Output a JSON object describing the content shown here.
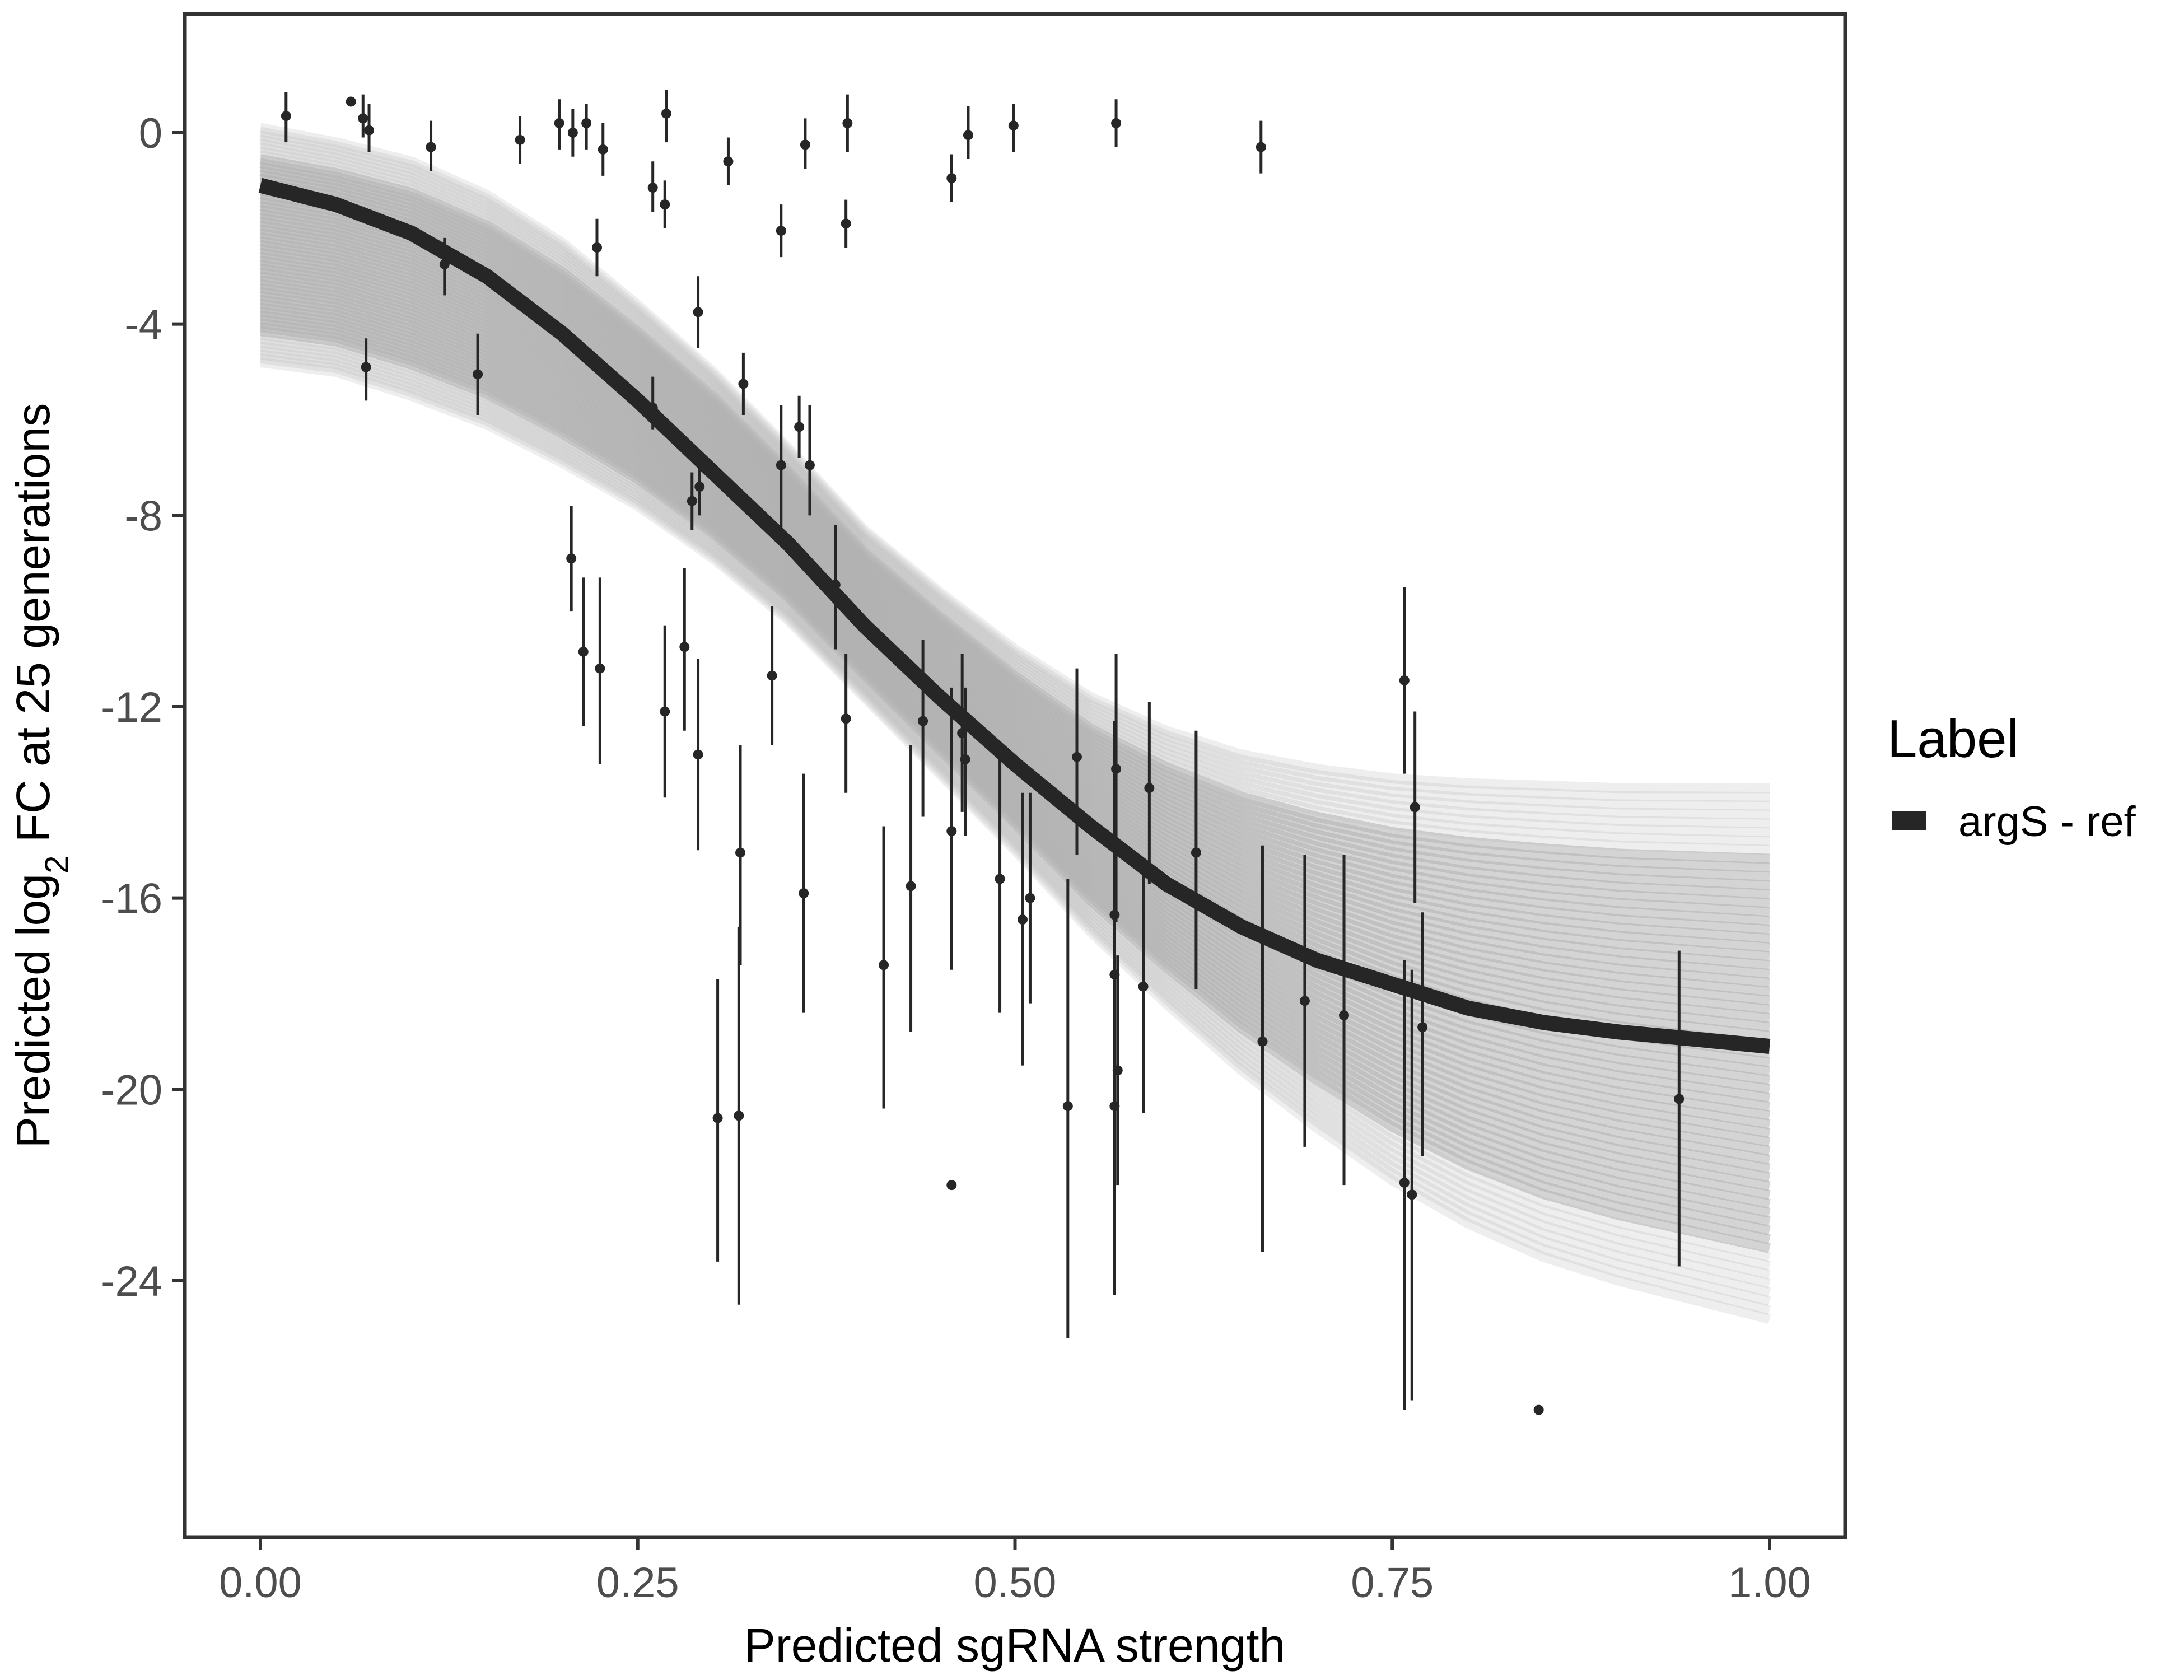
{
  "chart_data": {
    "type": "scatter",
    "xlabel": "Predicted sgRNA strength",
    "ylabel": {
      "prefix": "Predicted  log",
      "subscript": "2",
      "suffix": " FC at 25 generations"
    },
    "xlim": [
      -0.1,
      1.1
    ],
    "ylim": [
      -29.5,
      2.5
    ],
    "x_ticks": [
      0.0,
      0.25,
      0.5,
      0.75,
      1.0
    ],
    "x_tick_labels": [
      "0.00",
      "0.25",
      "0.50",
      "0.75",
      "1.00"
    ],
    "y_ticks": [
      0,
      -4,
      -8,
      -12,
      -16,
      -20,
      -24
    ],
    "y_tick_labels": [
      "0",
      "-4",
      "-8",
      "-12",
      "-16",
      "-20",
      "-24"
    ],
    "grid": false,
    "legend": {
      "title": "Label",
      "placement": "right",
      "entries": [
        {
          "label": "argS - ref",
          "color": "#262626"
        }
      ]
    },
    "fit_curve": {
      "name": "argS - ref",
      "color": "#262626",
      "x": [
        0.0,
        0.05,
        0.1,
        0.15,
        0.2,
        0.25,
        0.3,
        0.35,
        0.4,
        0.45,
        0.5,
        0.55,
        0.6,
        0.65,
        0.7,
        0.75,
        0.8,
        0.85,
        0.9,
        0.95,
        1.0
      ],
      "y": [
        -1.1,
        -1.5,
        -2.1,
        -3.0,
        -4.2,
        -5.6,
        -7.1,
        -8.6,
        -10.3,
        -11.8,
        -13.2,
        -14.5,
        -15.7,
        -16.6,
        -17.3,
        -17.8,
        -18.3,
        -18.6,
        -18.8,
        -18.95,
        -19.1
      ]
    },
    "ribbon": {
      "color": "#b0b0b0",
      "x": [
        0.0,
        0.05,
        0.1,
        0.15,
        0.2,
        0.25,
        0.3,
        0.35,
        0.4,
        0.45,
        0.5,
        0.55,
        0.6,
        0.65,
        0.7,
        0.75,
        0.8,
        0.85,
        0.9,
        0.95,
        1.0
      ],
      "upper": [
        0.1,
        -0.2,
        -0.6,
        -1.3,
        -2.3,
        -3.6,
        -5.0,
        -6.6,
        -8.3,
        -9.6,
        -10.8,
        -11.8,
        -12.5,
        -13.0,
        -13.3,
        -13.5,
        -13.6,
        -13.65,
        -13.7,
        -13.7,
        -13.7
      ],
      "lower": [
        -4.8,
        -5.0,
        -5.5,
        -6.1,
        -6.9,
        -7.8,
        -8.9,
        -10.2,
        -11.8,
        -13.4,
        -15.0,
        -16.7,
        -18.2,
        -19.6,
        -20.8,
        -21.9,
        -22.8,
        -23.5,
        -24.0,
        -24.4,
        -24.8
      ]
    },
    "points": [
      {
        "x": 0.017,
        "y": 0.35,
        "lo": -0.2,
        "hi": 0.85
      },
      {
        "x": 0.06,
        "y": 0.65,
        "lo": 0.65,
        "hi": 0.65
      },
      {
        "x": 0.068,
        "y": 0.3,
        "lo": -0.1,
        "hi": 0.8
      },
      {
        "x": 0.072,
        "y": 0.05,
        "lo": -0.4,
        "hi": 0.6
      },
      {
        "x": 0.07,
        "y": -4.9,
        "lo": -5.6,
        "hi": -4.3
      },
      {
        "x": 0.113,
        "y": -0.3,
        "lo": -0.8,
        "hi": 0.25
      },
      {
        "x": 0.122,
        "y": -2.75,
        "lo": -3.4,
        "hi": -2.2
      },
      {
        "x": 0.144,
        "y": -5.05,
        "lo": -5.9,
        "hi": -4.2
      },
      {
        "x": 0.172,
        "y": -0.15,
        "lo": -0.65,
        "hi": 0.35
      },
      {
        "x": 0.198,
        "y": 0.2,
        "lo": -0.35,
        "hi": 0.7
      },
      {
        "x": 0.206,
        "y": -8.9,
        "lo": -10.0,
        "hi": -7.8
      },
      {
        "x": 0.207,
        "y": 0.0,
        "lo": -0.5,
        "hi": 0.5
      },
      {
        "x": 0.214,
        "y": -10.85,
        "lo": -12.4,
        "hi": -9.3
      },
      {
        "x": 0.216,
        "y": 0.2,
        "lo": -0.35,
        "hi": 0.6
      },
      {
        "x": 0.223,
        "y": -2.4,
        "lo": -3.0,
        "hi": -1.8
      },
      {
        "x": 0.225,
        "y": -11.2,
        "lo": -13.2,
        "hi": -9.3
      },
      {
        "x": 0.227,
        "y": -0.35,
        "lo": -0.9,
        "hi": 0.2
      },
      {
        "x": 0.26,
        "y": -1.15,
        "lo": -1.65,
        "hi": -0.6
      },
      {
        "x": 0.26,
        "y": -5.75,
        "lo": -6.2,
        "hi": -5.1
      },
      {
        "x": 0.268,
        "y": -1.5,
        "lo": -2.0,
        "hi": -1.0
      },
      {
        "x": 0.268,
        "y": -12.1,
        "lo": -13.9,
        "hi": -10.3
      },
      {
        "x": 0.269,
        "y": 0.4,
        "lo": -0.2,
        "hi": 0.9
      },
      {
        "x": 0.281,
        "y": -10.75,
        "lo": -12.5,
        "hi": -9.1
      },
      {
        "x": 0.286,
        "y": -7.7,
        "lo": -8.3,
        "hi": -7.1
      },
      {
        "x": 0.29,
        "y": -13.0,
        "lo": -15.0,
        "hi": -11.0
      },
      {
        "x": 0.29,
        "y": -3.75,
        "lo": -4.5,
        "hi": -3.0
      },
      {
        "x": 0.291,
        "y": -7.4,
        "lo": -8.0,
        "hi": -6.8
      },
      {
        "x": 0.303,
        "y": -20.6,
        "lo": -23.6,
        "hi": -17.7
      },
      {
        "x": 0.31,
        "y": -0.6,
        "lo": -1.1,
        "hi": -0.1
      },
      {
        "x": 0.317,
        "y": -20.55,
        "lo": -24.5,
        "hi": -16.6
      },
      {
        "x": 0.318,
        "y": -15.05,
        "lo": -17.4,
        "hi": -12.8
      },
      {
        "x": 0.32,
        "y": -5.25,
        "lo": -5.9,
        "hi": -4.6
      },
      {
        "x": 0.339,
        "y": -11.35,
        "lo": -12.8,
        "hi": -9.9
      },
      {
        "x": 0.345,
        "y": -2.05,
        "lo": -2.6,
        "hi": -1.5
      },
      {
        "x": 0.345,
        "y": -6.95,
        "lo": -8.3,
        "hi": -5.7
      },
      {
        "x": 0.357,
        "y": -6.15,
        "lo": -6.8,
        "hi": -5.5
      },
      {
        "x": 0.36,
        "y": -15.9,
        "lo": -18.4,
        "hi": -13.4
      },
      {
        "x": 0.361,
        "y": -0.25,
        "lo": -0.75,
        "hi": 0.3
      },
      {
        "x": 0.364,
        "y": -6.95,
        "lo": -8.0,
        "hi": -5.7
      },
      {
        "x": 0.381,
        "y": -9.45,
        "lo": -10.8,
        "hi": -8.2
      },
      {
        "x": 0.388,
        "y": -1.9,
        "lo": -2.4,
        "hi": -1.4
      },
      {
        "x": 0.388,
        "y": -12.25,
        "lo": -13.8,
        "hi": -10.9
      },
      {
        "x": 0.389,
        "y": 0.2,
        "lo": -0.4,
        "hi": 0.8
      },
      {
        "x": 0.413,
        "y": -17.4,
        "lo": -20.4,
        "hi": -14.5
      },
      {
        "x": 0.431,
        "y": -15.75,
        "lo": -18.8,
        "hi": -12.8
      },
      {
        "x": 0.439,
        "y": -12.3,
        "lo": -14.3,
        "hi": -10.6
      },
      {
        "x": 0.458,
        "y": -0.95,
        "lo": -1.45,
        "hi": -0.45
      },
      {
        "x": 0.458,
        "y": -14.6,
        "lo": -17.5,
        "hi": -11.6
      },
      {
        "x": 0.458,
        "y": -22.0,
        "lo": -22.0,
        "hi": -22.0
      },
      {
        "x": 0.465,
        "y": -12.55,
        "lo": -14.2,
        "hi": -10.9
      },
      {
        "x": 0.467,
        "y": -13.1,
        "lo": -14.7,
        "hi": -11.6
      },
      {
        "x": 0.469,
        "y": -0.05,
        "lo": -0.55,
        "hi": 0.55
      },
      {
        "x": 0.49,
        "y": -15.6,
        "lo": -18.4,
        "hi": -12.8
      },
      {
        "x": 0.499,
        "y": 0.15,
        "lo": -0.4,
        "hi": 0.6
      },
      {
        "x": 0.505,
        "y": -16.45,
        "lo": -19.5,
        "hi": -13.8
      },
      {
        "x": 0.51,
        "y": -16.0,
        "lo": -18.2,
        "hi": -13.8
      },
      {
        "x": 0.535,
        "y": -20.35,
        "lo": -25.2,
        "hi": -15.6
      },
      {
        "x": 0.541,
        "y": -13.05,
        "lo": -15.1,
        "hi": -11.2
      },
      {
        "x": 0.566,
        "y": -16.35,
        "lo": -21.6,
        "hi": -12.3
      },
      {
        "x": 0.566,
        "y": -17.6,
        "lo": -22.4,
        "hi": -13.3
      },
      {
        "x": 0.566,
        "y": -20.35,
        "lo": -24.3,
        "hi": -16.2
      },
      {
        "x": 0.567,
        "y": -13.3,
        "lo": -16.5,
        "hi": -10.9
      },
      {
        "x": 0.568,
        "y": -19.6,
        "lo": -22.0,
        "hi": -17.2
      },
      {
        "x": 0.567,
        "y": 0.2,
        "lo": -0.3,
        "hi": 0.7
      },
      {
        "x": 0.585,
        "y": -17.85,
        "lo": -20.5,
        "hi": -15.4
      },
      {
        "x": 0.589,
        "y": -13.7,
        "lo": -15.7,
        "hi": -11.9
      },
      {
        "x": 0.62,
        "y": -15.05,
        "lo": -17.9,
        "hi": -12.5
      },
      {
        "x": 0.663,
        "y": -0.3,
        "lo": -0.85,
        "hi": 0.25
      },
      {
        "x": 0.664,
        "y": -19.0,
        "lo": -23.4,
        "hi": -14.9
      },
      {
        "x": 0.692,
        "y": -18.15,
        "lo": -21.2,
        "hi": -15.1
      },
      {
        "x": 0.718,
        "y": -18.45,
        "lo": -22.0,
        "hi": -15.1
      },
      {
        "x": 0.758,
        "y": -11.45,
        "lo": -13.4,
        "hi": -9.5
      },
      {
        "x": 0.758,
        "y": -21.95,
        "lo": -26.7,
        "hi": -17.3
      },
      {
        "x": 0.763,
        "y": -22.2,
        "lo": -26.5,
        "hi": -17.5
      },
      {
        "x": 0.765,
        "y": -14.1,
        "lo": -16.1,
        "hi": -12.1
      },
      {
        "x": 0.77,
        "y": -18.7,
        "lo": -21.4,
        "hi": -16.3
      },
      {
        "x": 0.847,
        "y": -26.7,
        "lo": -26.7,
        "hi": -26.7
      },
      {
        "x": 0.94,
        "y": -20.2,
        "lo": -23.7,
        "hi": -17.1
      }
    ]
  }
}
